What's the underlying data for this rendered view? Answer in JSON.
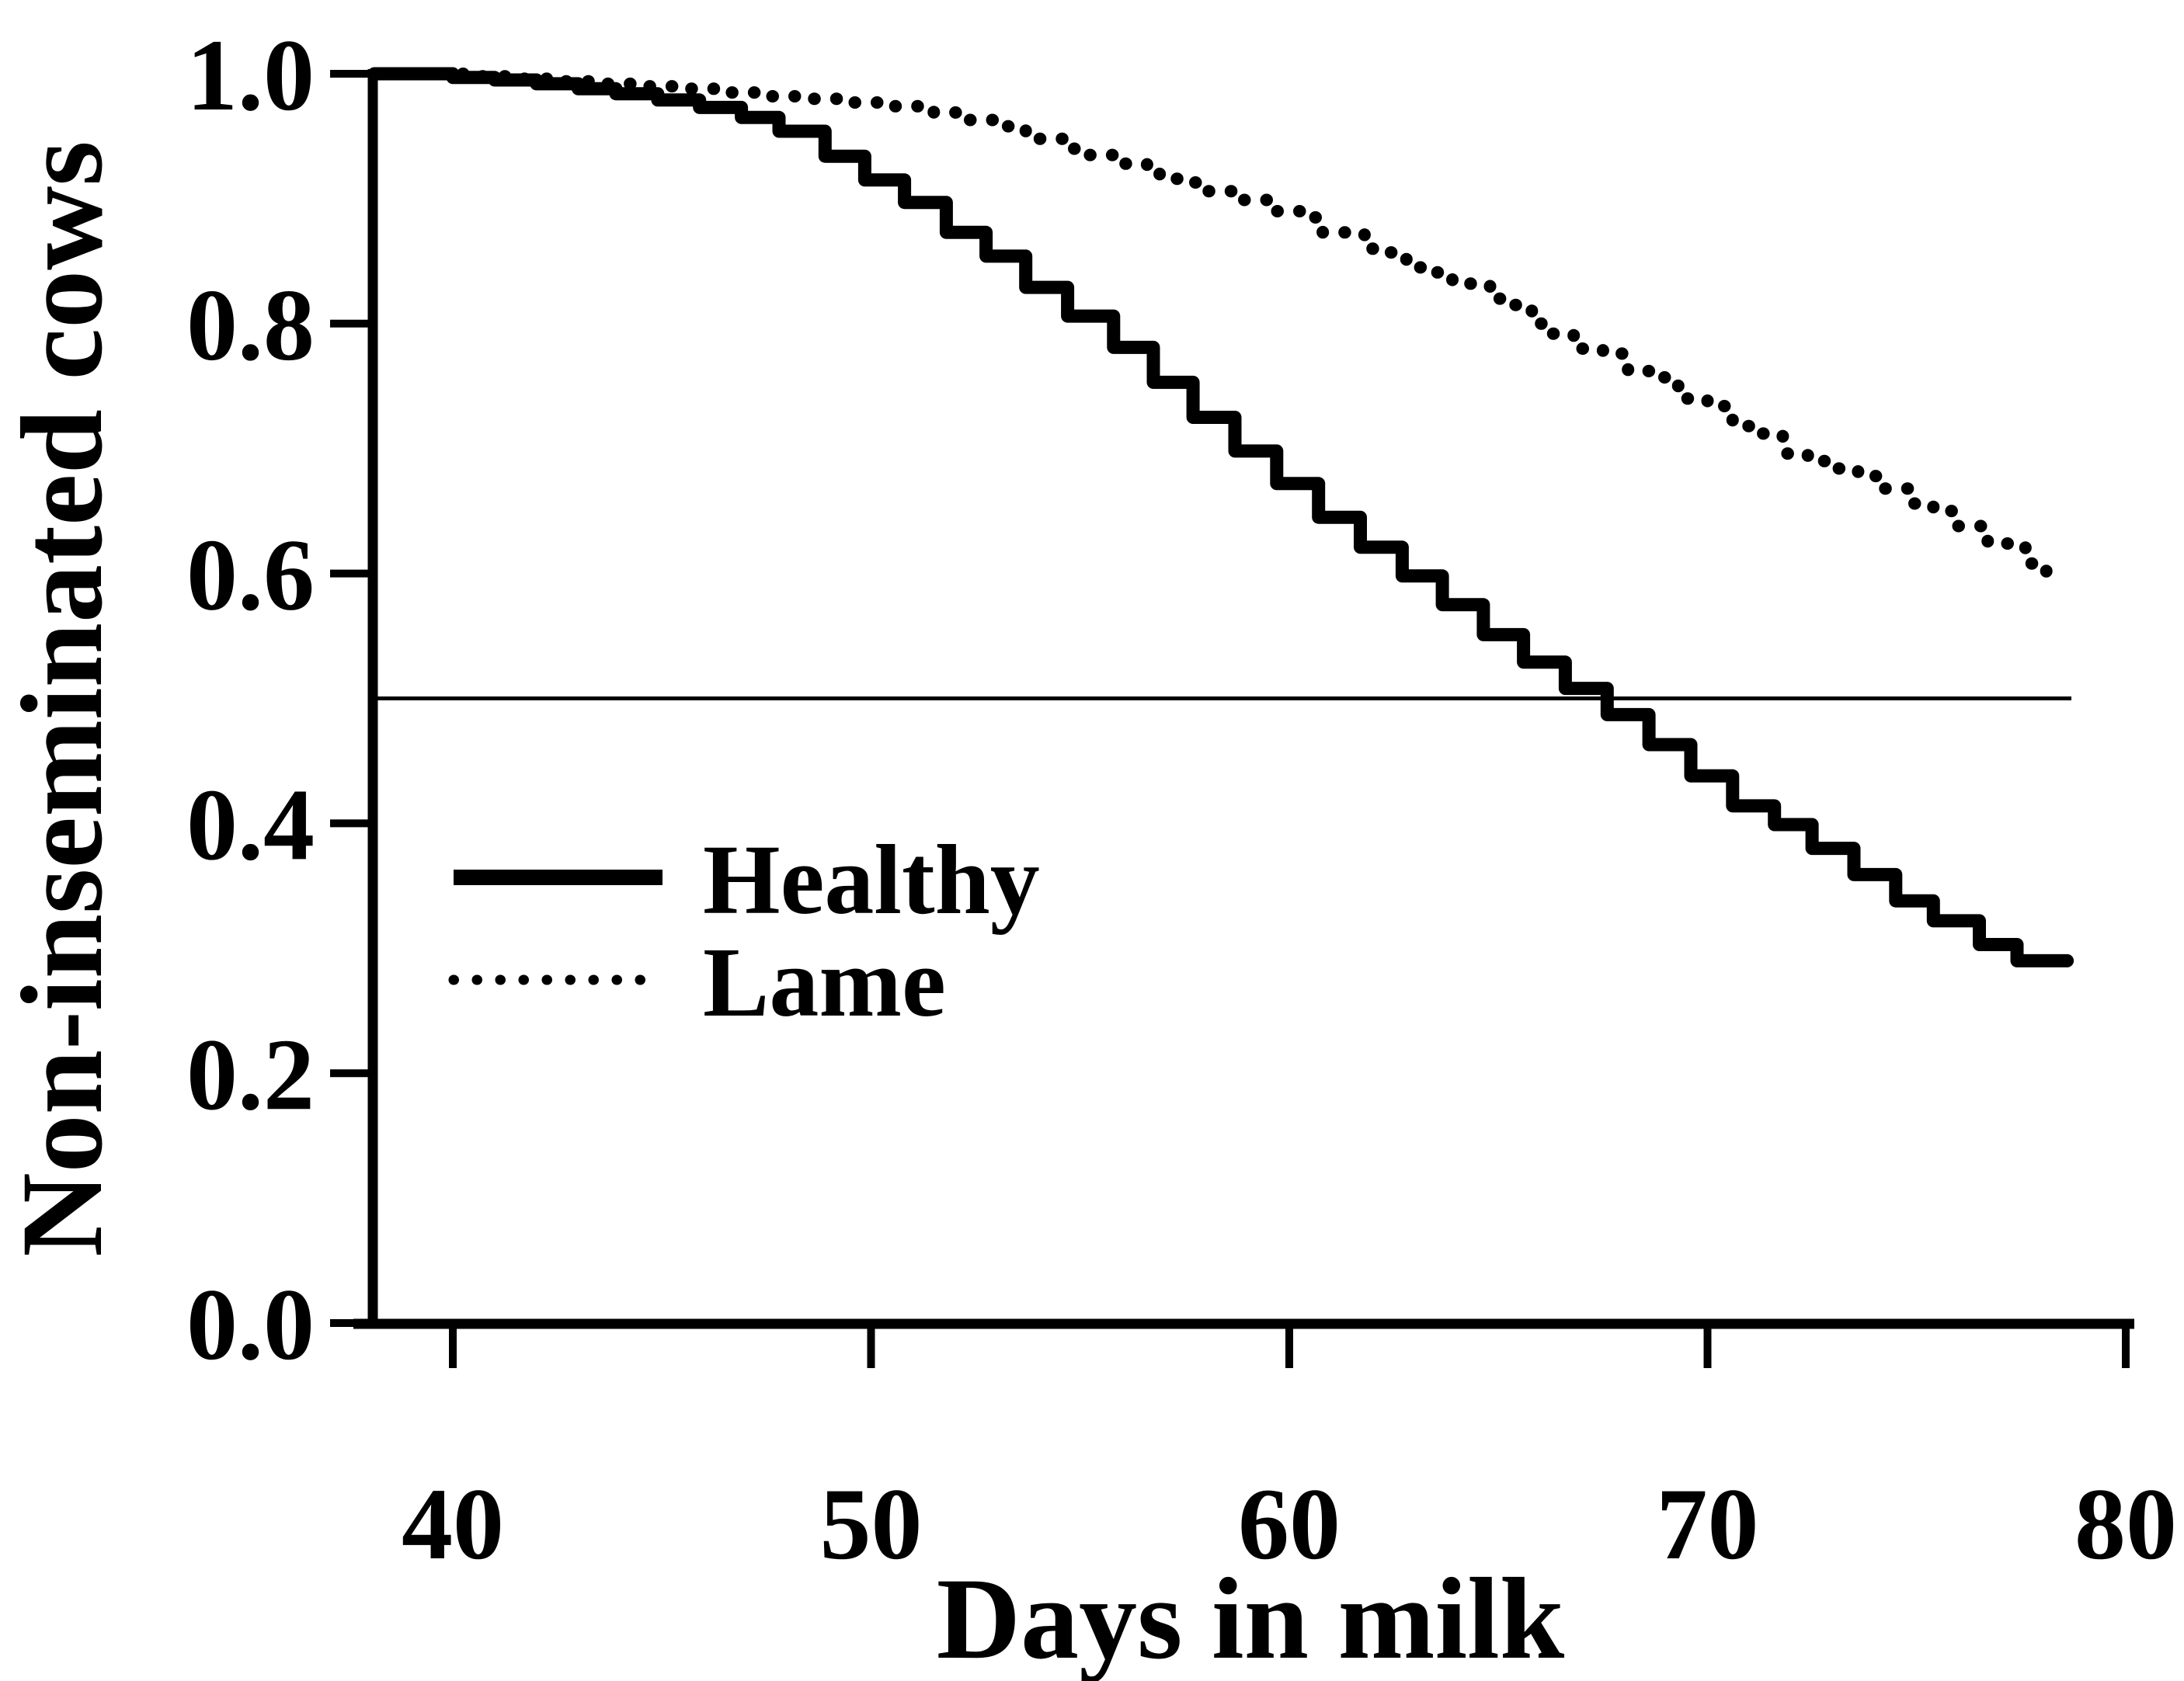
{
  "figure": {
    "background": "#ffffff",
    "ink_color": "#000000"
  },
  "chart_data": {
    "type": "line",
    "subtype": "kaplan-meier-survival-steps",
    "title": "",
    "xlabel": "Days in milk",
    "ylabel": "Non-inseminated cows",
    "xlim": [
      38,
      80
    ],
    "ylim": [
      0.0,
      1.0
    ],
    "grid": false,
    "x_ticks": [
      40,
      50,
      60,
      70,
      80
    ],
    "x_tick_labels": [
      "40",
      "50",
      "60",
      "70",
      "80"
    ],
    "y_ticks": [
      1.0,
      0.8,
      0.6,
      0.4,
      0.2,
      0.0
    ],
    "y_tick_labels": [
      "1.0",
      "0.8",
      "0.6",
      "0.4",
      "0.2",
      "0.0"
    ],
    "reference_line": {
      "y": 0.5,
      "x_start": 38.1,
      "x_end": 78.7
    },
    "legend": {
      "position": "inside-left-middle",
      "entries": [
        {
          "label": "Healthy",
          "style": "solid"
        },
        {
          "label": "Lame",
          "style": "dotted"
        }
      ]
    },
    "series": [
      {
        "name": "Healthy",
        "style": "solid",
        "start_x": 38.1,
        "end_x": 78.6,
        "median_day": 67.5,
        "points": [
          [
            38.0,
            1.0
          ],
          [
            40.0,
            0.997
          ],
          [
            41.0,
            0.995
          ],
          [
            42.0,
            0.992
          ],
          [
            43.0,
            0.988
          ],
          [
            43.9,
            0.984
          ],
          [
            44.9,
            0.979
          ],
          [
            45.9,
            0.973
          ],
          [
            46.9,
            0.965
          ],
          [
            47.8,
            0.954
          ],
          [
            48.9,
            0.934
          ],
          [
            49.85,
            0.915
          ],
          [
            50.8,
            0.897
          ],
          [
            51.8,
            0.873
          ],
          [
            52.75,
            0.854
          ],
          [
            53.7,
            0.829
          ],
          [
            54.7,
            0.806
          ],
          [
            55.8,
            0.781
          ],
          [
            56.75,
            0.753
          ],
          [
            57.7,
            0.725
          ],
          [
            58.7,
            0.698
          ],
          [
            59.7,
            0.672
          ],
          [
            60.7,
            0.645
          ],
          [
            61.7,
            0.621
          ],
          [
            62.7,
            0.598
          ],
          [
            63.66,
            0.575
          ],
          [
            64.64,
            0.551
          ],
          [
            65.6,
            0.529
          ],
          [
            66.6,
            0.508
          ],
          [
            67.6,
            0.487
          ],
          [
            68.6,
            0.463
          ],
          [
            69.6,
            0.438
          ],
          [
            70.6,
            0.414
          ],
          [
            71.6,
            0.399
          ],
          [
            72.5,
            0.38
          ],
          [
            73.5,
            0.359
          ],
          [
            74.5,
            0.338
          ],
          [
            75.4,
            0.322
          ],
          [
            76.5,
            0.303
          ],
          [
            77.4,
            0.29
          ]
        ]
      },
      {
        "name": "Lame",
        "style": "dotted",
        "start_x": 38.1,
        "end_x": 78.4,
        "points": [
          [
            38.0,
            1.0
          ],
          [
            40.5,
            0.998
          ],
          [
            41.5,
            0.996
          ],
          [
            42.5,
            0.994
          ],
          [
            43.5,
            0.992
          ],
          [
            44.5,
            0.99
          ],
          [
            45.5,
            0.988
          ],
          [
            46.5,
            0.985
          ],
          [
            47.5,
            0.982
          ],
          [
            48.5,
            0.98
          ],
          [
            49.5,
            0.977
          ],
          [
            50.5,
            0.974
          ],
          [
            51.5,
            0.969
          ],
          [
            52.2,
            0.963
          ],
          [
            53.0,
            0.958
          ],
          [
            53.7,
            0.948
          ],
          [
            54.8,
            0.94
          ],
          [
            55.2,
            0.935
          ],
          [
            55.9,
            0.928
          ],
          [
            56.6,
            0.922
          ],
          [
            56.9,
            0.916
          ],
          [
            57.4,
            0.913
          ],
          [
            57.9,
            0.906
          ],
          [
            58.9,
            0.899
          ],
          [
            59.6,
            0.89
          ],
          [
            60.3,
            0.885
          ],
          [
            60.8,
            0.873
          ],
          [
            61.8,
            0.86
          ],
          [
            62.3,
            0.857
          ],
          [
            62.8,
            0.845
          ],
          [
            63.3,
            0.841
          ],
          [
            63.9,
            0.832
          ],
          [
            64.8,
            0.82
          ],
          [
            65.4,
            0.815
          ],
          [
            65.8,
            0.8
          ],
          [
            66.3,
            0.792
          ],
          [
            66.8,
            0.78
          ],
          [
            67.5,
            0.776
          ],
          [
            68.1,
            0.762
          ],
          [
            68.7,
            0.757
          ],
          [
            69.3,
            0.74
          ],
          [
            70.0,
            0.734
          ],
          [
            70.6,
            0.718
          ],
          [
            71.2,
            0.712
          ],
          [
            71.8,
            0.696
          ],
          [
            72.4,
            0.69
          ],
          [
            73.1,
            0.684
          ],
          [
            73.6,
            0.678
          ],
          [
            74.2,
            0.668
          ],
          [
            74.8,
            0.656
          ],
          [
            75.4,
            0.65
          ],
          [
            75.9,
            0.638
          ],
          [
            76.7,
            0.624
          ],
          [
            77.6,
            0.608
          ],
          [
            78.1,
            0.601
          ]
        ]
      }
    ]
  }
}
